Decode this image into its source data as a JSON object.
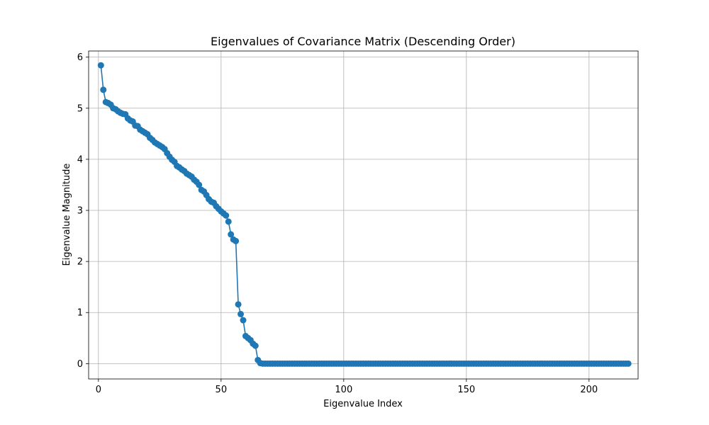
{
  "chart_data": {
    "type": "line",
    "title": "Eigenvalues of Covariance Matrix (Descending Order)",
    "xlabel": "Eigenvalue Index",
    "ylabel": "Eigenvalue Magnitude",
    "xlim": [
      -4,
      220
    ],
    "ylim": [
      -0.3,
      6.12
    ],
    "x_ticks": [
      0,
      50,
      100,
      150,
      200
    ],
    "y_ticks": [
      0,
      1,
      2,
      3,
      4,
      5,
      6
    ],
    "x_tick_labels": [
      "0",
      "50",
      "100",
      "150",
      "200"
    ],
    "y_tick_labels": [
      "0",
      "1",
      "2",
      "3",
      "4",
      "5",
      "6"
    ],
    "grid": true,
    "marker": "circle",
    "color": "#1f77b4",
    "series": [
      {
        "x_start": 1,
        "values": [
          5.84,
          5.36,
          5.12,
          5.1,
          5.07,
          5.0,
          4.98,
          4.94,
          4.91,
          4.89,
          4.88,
          4.8,
          4.76,
          4.74,
          4.66,
          4.65,
          4.58,
          4.55,
          4.52,
          4.49,
          4.42,
          4.38,
          4.33,
          4.3,
          4.27,
          4.24,
          4.2,
          4.12,
          4.05,
          3.99,
          3.95,
          3.87,
          3.84,
          3.8,
          3.77,
          3.72,
          3.69,
          3.66,
          3.6,
          3.56,
          3.5,
          3.4,
          3.37,
          3.3,
          3.22,
          3.17,
          3.15,
          3.08,
          3.03,
          2.98,
          2.94,
          2.9,
          2.78,
          2.53,
          2.43,
          2.4,
          1.16,
          0.97,
          0.85,
          0.54,
          0.5,
          0.46,
          0.39,
          0.35,
          0.07,
          0.01,
          0,
          0,
          0,
          0,
          0,
          0,
          0,
          0,
          0,
          0,
          0,
          0,
          0,
          0,
          0,
          0,
          0,
          0,
          0,
          0,
          0,
          0,
          0,
          0,
          0,
          0,
          0,
          0,
          0,
          0,
          0,
          0,
          0,
          0,
          0,
          0,
          0,
          0,
          0,
          0,
          0,
          0,
          0,
          0,
          0,
          0,
          0,
          0,
          0,
          0,
          0,
          0,
          0,
          0,
          0,
          0,
          0,
          0,
          0,
          0,
          0,
          0,
          0,
          0,
          0,
          0,
          0,
          0,
          0,
          0,
          0,
          0,
          0,
          0,
          0,
          0,
          0,
          0,
          0,
          0,
          0,
          0,
          0,
          0,
          0,
          0,
          0,
          0,
          0,
          0,
          0,
          0,
          0,
          0,
          0,
          0,
          0,
          0,
          0,
          0,
          0,
          0,
          0,
          0,
          0,
          0,
          0,
          0,
          0,
          0,
          0,
          0,
          0,
          0,
          0,
          0,
          0,
          0,
          0,
          0,
          0,
          0,
          0,
          0,
          0,
          0,
          0,
          0,
          0,
          0,
          0,
          0,
          0,
          0,
          0,
          0,
          0,
          0,
          0,
          0,
          0,
          0,
          0,
          0,
          0,
          0,
          0,
          0,
          0,
          0
        ]
      }
    ]
  }
}
